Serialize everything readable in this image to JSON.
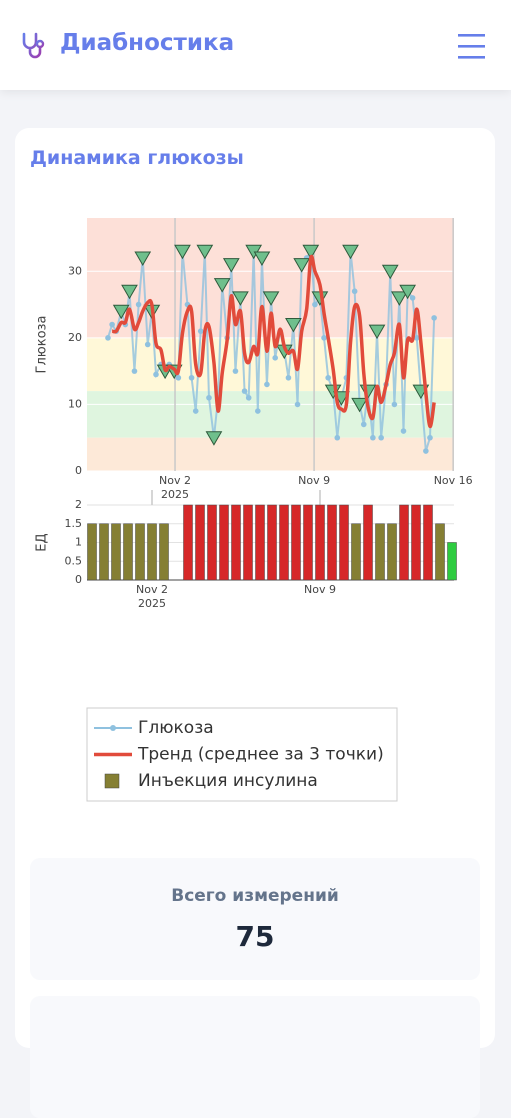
{
  "header": {
    "title": "Диабностика"
  },
  "card": {
    "title": "Динамика глюкозы"
  },
  "chart_data": [
    {
      "type": "line",
      "ylabel": "Глюкоза",
      "xlim": [
        "2025-10-28T13:40",
        "2025-11-16T01:00"
      ],
      "ylim": [
        0,
        38
      ],
      "yticks": [
        0,
        10,
        20,
        30
      ],
      "grid": true,
      "xticks": [
        {
          "value": "2025-11-02",
          "label": "Nov 2\n2025"
        },
        {
          "value": "2025-11-09",
          "label": "Nov 9"
        },
        {
          "value": "2025-11-16",
          "label": "Nov 16"
        }
      ],
      "bands": [
        {
          "range": [
            20,
            38
          ],
          "color": "#fde0d8"
        },
        {
          "range": [
            12,
            20
          ],
          "color": "#fff8d8"
        },
        {
          "range": [
            5,
            12
          ],
          "color": "#dff5df"
        },
        {
          "range": [
            0,
            5
          ],
          "color": "#fde9d8"
        }
      ],
      "x": [
        "2025-10-29T15:00",
        "2025-10-29T20:00",
        "2025-10-30T01:00",
        "2025-10-30T07:00",
        "2025-10-30T12:00",
        "2025-10-30T17:00",
        "2025-10-30T23:00",
        "2025-10-31T04:00",
        "2025-10-31T09:00",
        "2025-10-31T15:00",
        "2025-10-31T20:00",
        "2025-11-01T01:00",
        "2025-11-01T07:00",
        "2025-11-01T12:00",
        "2025-11-01T17:00",
        "2025-11-01T23:00",
        "2025-11-02T04:00",
        "2025-11-02T09:00",
        "2025-11-02T15:00",
        "2025-11-02T20:00",
        "2025-11-03T01:00",
        "2025-11-03T07:00",
        "2025-11-03T12:00",
        "2025-11-03T17:00",
        "2025-11-03T23:00",
        "2025-11-04T04:00",
        "2025-11-04T09:00",
        "2025-11-04T15:00",
        "2025-11-04T20:00",
        "2025-11-05T01:00",
        "2025-11-05T07:00",
        "2025-11-05T12:00",
        "2025-11-05T17:00",
        "2025-11-05T23:00",
        "2025-11-06T04:00",
        "2025-11-06T09:00",
        "2025-11-06T15:00",
        "2025-11-06T20:00",
        "2025-11-07T01:00",
        "2025-11-07T07:00",
        "2025-11-07T12:00",
        "2025-11-07T17:00",
        "2025-11-07T23:00",
        "2025-11-08T04:00",
        "2025-11-08T09:00",
        "2025-11-08T15:00",
        "2025-11-08T20:00",
        "2025-11-09T01:00",
        "2025-11-09T07:00",
        "2025-11-09T12:00",
        "2025-11-09T17:00",
        "2025-11-09T23:00",
        "2025-11-10T04:00",
        "2025-11-10T09:00",
        "2025-11-10T15:00",
        "2025-11-10T20:00",
        "2025-11-11T01:00",
        "2025-11-11T07:00",
        "2025-11-11T12:00",
        "2025-11-11T17:00",
        "2025-11-11T23:00",
        "2025-11-12T04:00",
        "2025-11-12T09:00",
        "2025-11-12T15:00",
        "2025-11-12T20:00",
        "2025-11-13T01:00",
        "2025-11-13T07:00",
        "2025-11-13T12:00",
        "2025-11-13T17:00",
        "2025-11-13T23:00",
        "2025-11-14T04:00",
        "2025-11-14T09:00",
        "2025-11-14T15:00",
        "2025-11-14T20:00",
        "2025-11-15T01:00"
      ],
      "series": [
        {
          "name": "Глюкоза",
          "color": "#8fc1df",
          "values": [
            20,
            22,
            21,
            24,
            22,
            27,
            15,
            25,
            32,
            19,
            24,
            14.5,
            16,
            15,
            16,
            15,
            14,
            33,
            25,
            14,
            9,
            21,
            33,
            11,
            5,
            11,
            28,
            20,
            31,
            15,
            26,
            12,
            11,
            33,
            9,
            32,
            13,
            26,
            17,
            21,
            18,
            14,
            22,
            10,
            31,
            32,
            33,
            25,
            26,
            20,
            14,
            12,
            5,
            11,
            14,
            33,
            27,
            10,
            7,
            12,
            5,
            21,
            5,
            13,
            30,
            10,
            26,
            6,
            27,
            26,
            20,
            12,
            3,
            5,
            23
          ],
          "marker_color": "#6fbf8c",
          "markers": [
            null,
            null,
            null,
            24,
            null,
            27,
            null,
            null,
            32,
            null,
            24,
            null,
            null,
            15,
            null,
            15,
            null,
            33,
            null,
            null,
            null,
            null,
            33,
            null,
            5,
            null,
            28,
            null,
            31,
            null,
            26,
            null,
            null,
            33,
            null,
            32,
            null,
            26,
            null,
            null,
            18,
            null,
            22,
            null,
            31,
            null,
            33,
            null,
            26,
            null,
            null,
            12,
            null,
            11,
            null,
            33,
            null,
            10,
            null,
            12,
            null,
            21,
            null,
            null,
            30,
            null,
            26,
            null,
            27,
            null,
            null,
            12,
            null,
            null,
            null
          ]
        },
        {
          "name": "Тренд (среднее за 3 точки)",
          "color": "#e14b3b",
          "values": [
            null,
            21,
            21,
            22.3,
            22.3,
            24.3,
            21.3,
            22.3,
            24,
            25.3,
            25,
            19.2,
            18.2,
            15.2,
            15.7,
            15.3,
            15,
            20.7,
            24,
            24,
            16,
            14.7,
            21,
            21.7,
            16.3,
            9,
            14.7,
            19.7,
            26.3,
            22,
            24,
            17.7,
            16.3,
            18.7,
            17.7,
            24.7,
            18,
            23.7,
            18.7,
            21.3,
            18.7,
            17.7,
            18,
            15.3,
            21,
            24.3,
            32,
            30,
            28,
            23.7,
            20,
            15.3,
            10.3,
            9.3,
            10,
            19.3,
            24.7,
            23.3,
            14.7,
            9.7,
            8,
            12.7,
            10.3,
            13,
            16,
            17.7,
            22,
            14,
            19.7,
            19.7,
            24.3,
            19.3,
            11.7,
            6.7,
            10.3
          ]
        }
      ]
    },
    {
      "type": "bar",
      "ylabel": "ЕД",
      "xlim": [
        "2025-10-30T07:00",
        "2025-11-14T14:00"
      ],
      "ylim": [
        0,
        2
      ],
      "yticks": [
        0,
        0.5,
        1,
        1.5,
        2
      ],
      "grid": true,
      "xticks": [
        {
          "value": "2025-11-02",
          "label": "Nov 2\n2025"
        },
        {
          "value": "2025-11-09",
          "label": "Nov 9"
        }
      ],
      "series": [
        {
          "name": "Инъекция инсулина",
          "color": "#857f33",
          "x": [
            "2025-10-30T12:00",
            "2025-10-31T00:00",
            "2025-10-31T12:00",
            "2025-11-01T00:00",
            "2025-11-01T12:00",
            "2025-11-02T00:00",
            "2025-11-02T12:00",
            "2025-11-03T12:00",
            "2025-11-04T00:00",
            "2025-11-04T12:00",
            "2025-11-05T00:00",
            "2025-11-05T12:00",
            "2025-11-06T00:00",
            "2025-11-06T12:00",
            "2025-11-07T00:00",
            "2025-11-07T12:00",
            "2025-11-08T00:00",
            "2025-11-08T12:00",
            "2025-11-09T00:00",
            "2025-11-09T12:00",
            "2025-11-10T00:00",
            "2025-11-10T12:00",
            "2025-11-11T00:00",
            "2025-11-11T12:00",
            "2025-11-12T00:00",
            "2025-11-12T12:00",
            "2025-11-13T00:00",
            "2025-11-13T12:00",
            "2025-11-14T00:00",
            "2025-11-14T12:00"
          ],
          "values": [
            1.5,
            1.5,
            1.5,
            1.5,
            1.5,
            1.5,
            1.5,
            2,
            2,
            2,
            2,
            2,
            2,
            2,
            2,
            2,
            2,
            2,
            2,
            2,
            2,
            1.5,
            2,
            1.5,
            1.5,
            2,
            2,
            2,
            1.5,
            1
          ],
          "colors": [
            "#857f33",
            "#857f33",
            "#857f33",
            "#857f33",
            "#857f33",
            "#857f33",
            "#857f33",
            "#d62728",
            "#d62728",
            "#d62728",
            "#d62728",
            "#d62728",
            "#d62728",
            "#d62728",
            "#d62728",
            "#d62728",
            "#d62728",
            "#d62728",
            "#d62728",
            "#d62728",
            "#d62728",
            "#857f33",
            "#d62728",
            "#857f33",
            "#857f33",
            "#d62728",
            "#d62728",
            "#d62728",
            "#857f33",
            "#2ecc40"
          ]
        }
      ]
    }
  ],
  "stats": [
    {
      "label": "Всего измерений",
      "value": 75
    }
  ]
}
